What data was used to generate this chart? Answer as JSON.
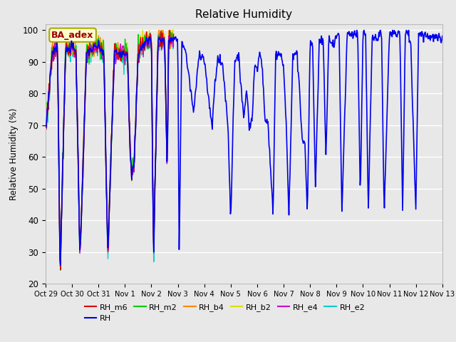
{
  "title": "Relative Humidity",
  "ylabel": "Relative Humidity (%)",
  "ylim": [
    20,
    102
  ],
  "yticks": [
    20,
    30,
    40,
    50,
    60,
    70,
    80,
    90,
    100
  ],
  "fig_bg": "#e8e8e8",
  "plot_bg": "#e8e8e8",
  "annotation_text": "BA_adex",
  "annotation_color": "#990000",
  "series_colors": {
    "RH_m6": "#dd0000",
    "RH": "#0000ee",
    "RH_m2": "#00cc00",
    "RH_b4": "#ff8800",
    "RH_b2": "#dddd00",
    "RH_e4": "#cc00cc",
    "RH_e2": "#00cccc"
  },
  "legend_order": [
    "RH_m6",
    "RH",
    "RH_m2",
    "RH_b4",
    "RH_b2",
    "RH_e4",
    "RH_e2"
  ],
  "xtick_labels": [
    "Oct 29",
    "Oct 30",
    "Oct 31",
    "Nov 1",
    "Nov 2",
    "Nov 3",
    "Nov 4",
    "Nov 5",
    "Nov 6",
    "Nov 7",
    "Nov 8",
    "Nov 9",
    "Nov 10",
    "Nov 11",
    "Nov 12",
    "Nov 13"
  ],
  "xtick_positions": [
    0,
    1,
    2,
    3,
    4,
    5,
    6,
    7,
    8,
    9,
    10,
    11,
    12,
    13,
    14,
    15
  ]
}
